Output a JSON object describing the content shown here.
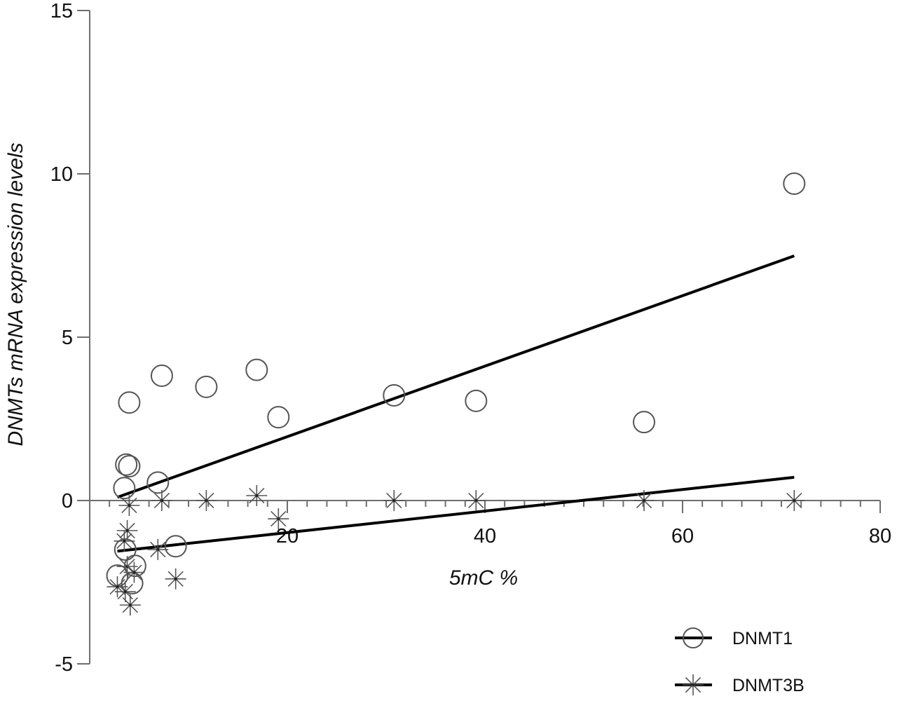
{
  "chart_data": {
    "type": "scatter",
    "title": "",
    "xlabel": "5mC %",
    "ylabel": "DNMTs mRNA expression levels",
    "xlim": [
      0,
      80
    ],
    "ylim": [
      -5,
      15
    ],
    "x_ticks": [
      20,
      40,
      60,
      80
    ],
    "x_tick_labels": [
      "20",
      "40",
      "60",
      "80"
    ],
    "y_ticks": [
      15,
      10,
      5,
      0,
      -5
    ],
    "y_tick_labels": [
      "15",
      "10",
      "5",
      "0",
      "-5"
    ],
    "grid": false,
    "legend_position": "lower right",
    "series": [
      {
        "name": "DNMT1",
        "marker": "open-circle",
        "points": [
          [
            71.3,
            9.7
          ],
          [
            4.0,
            3.0
          ],
          [
            7.3,
            3.82
          ],
          [
            11.8,
            3.48
          ],
          [
            16.9,
            4.0
          ],
          [
            19.1,
            2.55
          ],
          [
            30.8,
            3.22
          ],
          [
            39.1,
            3.05
          ],
          [
            56.1,
            2.4
          ],
          [
            3.7,
            1.1
          ],
          [
            4.0,
            1.05
          ],
          [
            3.5,
            0.38
          ],
          [
            6.9,
            0.55
          ],
          [
            3.6,
            -1.5
          ],
          [
            8.7,
            -1.4
          ],
          [
            4.6,
            -2.0
          ],
          [
            2.8,
            -2.3
          ],
          [
            4.3,
            -2.53
          ]
        ],
        "fit_line": {
          "x": [
            2.8,
            71.3
          ],
          "y": [
            0.1,
            7.49
          ]
        }
      },
      {
        "name": "DNMT3B",
        "marker": "asterisk",
        "points": [
          [
            4.0,
            -0.15
          ],
          [
            7.3,
            0.0
          ],
          [
            11.8,
            0.0
          ],
          [
            16.9,
            0.15
          ],
          [
            19.1,
            -0.56
          ],
          [
            30.8,
            0.0
          ],
          [
            39.1,
            0.0
          ],
          [
            56.1,
            0.0
          ],
          [
            71.3,
            0.0
          ],
          [
            3.8,
            -0.92
          ],
          [
            3.5,
            -1.24
          ],
          [
            6.9,
            -1.5
          ],
          [
            8.7,
            -2.4
          ],
          [
            3.8,
            -2.02
          ],
          [
            4.5,
            -2.2
          ],
          [
            2.8,
            -2.64
          ],
          [
            3.6,
            -2.79
          ],
          [
            4.1,
            -3.2
          ]
        ],
        "fit_line": {
          "x": [
            2.8,
            71.3
          ],
          "y": [
            -1.55,
            0.71
          ]
        }
      }
    ]
  },
  "legend": {
    "items": [
      {
        "label": "DNMT1",
        "marker": "open-circle"
      },
      {
        "label": "DNMT3B",
        "marker": "asterisk"
      }
    ]
  },
  "colors": {
    "axis": "#6e6e6e",
    "marker": "#555555",
    "fit_line": "#000000",
    "text": "#111111"
  }
}
